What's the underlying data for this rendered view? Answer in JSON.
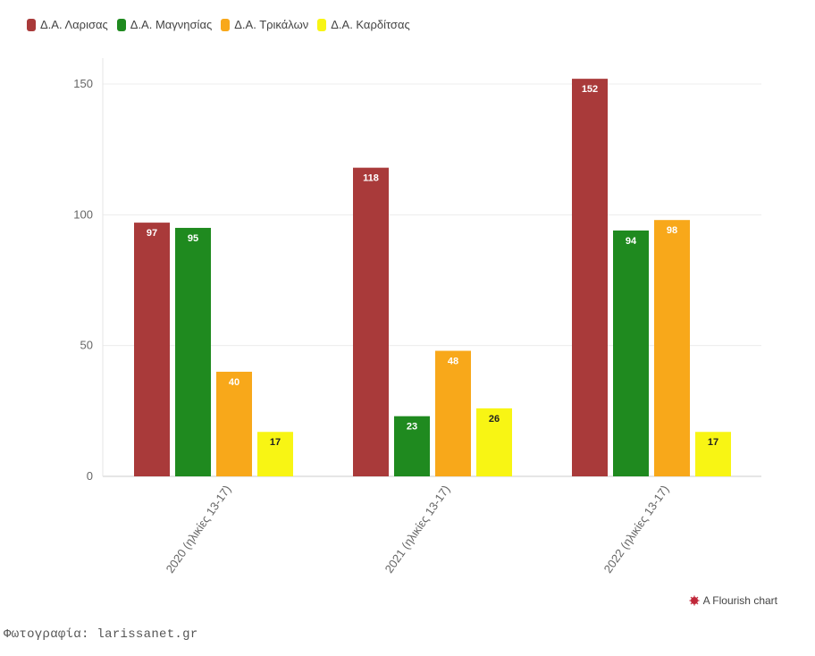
{
  "chart_data": {
    "type": "bar",
    "title": "",
    "xlabel": "",
    "ylabel": "",
    "ylim": [
      0,
      150
    ],
    "yticks": [
      0,
      50,
      100,
      150
    ],
    "categories": [
      "2020 (ηλικίες 13-17)",
      "2021 (ηλικίες 13-17)",
      "2022 (ηλικίες 13-17)"
    ],
    "series": [
      {
        "name": "Δ.Α. Λαρισας",
        "color": "#a93a3a",
        "label_color": "#ffffff",
        "values": [
          97,
          118,
          152
        ]
      },
      {
        "name": "Δ.Α. Μαγνησίας",
        "color": "#1f8a1f",
        "label_color": "#ffffff",
        "values": [
          95,
          23,
          94
        ]
      },
      {
        "name": "Δ.Α. Τρικάλων",
        "color": "#f8a81a",
        "label_color": "#ffffff",
        "values": [
          40,
          48,
          98
        ]
      },
      {
        "name": "Δ.Α. Καρδίτσας",
        "color": "#f8f514",
        "label_color": "#222222",
        "values": [
          17,
          26,
          17
        ]
      }
    ],
    "legend_position": "top-left",
    "grid": true
  },
  "credit": {
    "text": "A Flourish chart",
    "icon": "flourish-icon",
    "icon_color": "#c0283a"
  },
  "caption": {
    "text": "Φωτογραφία: larissanet.gr"
  }
}
